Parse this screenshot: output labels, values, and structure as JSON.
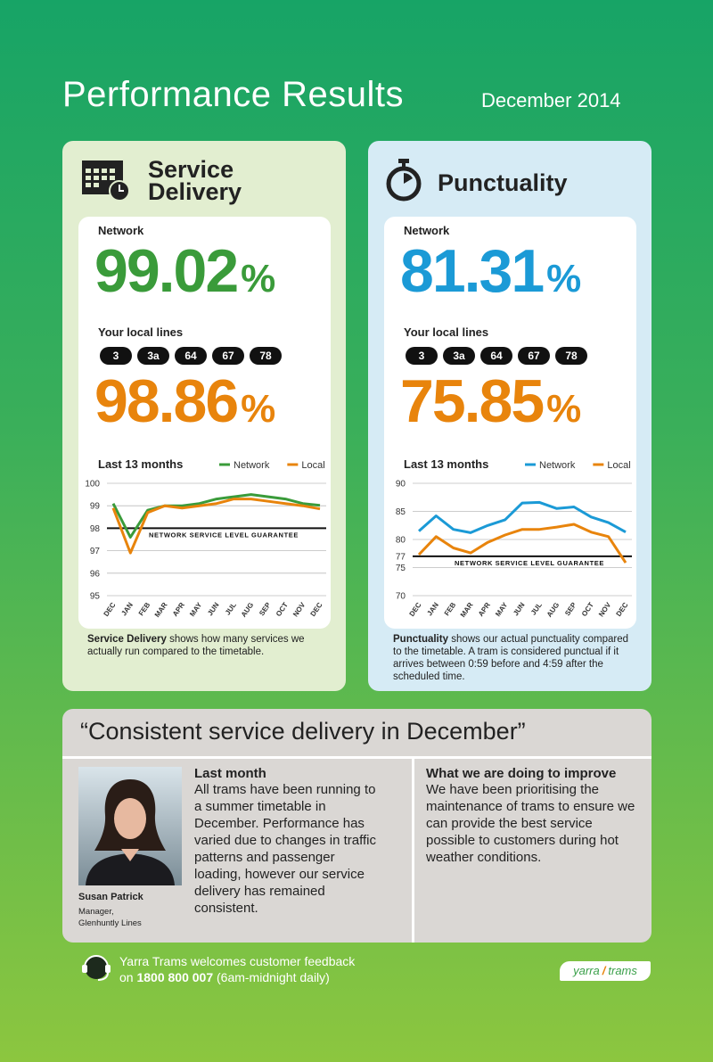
{
  "header": {
    "title": "Performance Results",
    "date": "December 2014"
  },
  "panels": [
    {
      "title": "Service Delivery",
      "network_label": "Network",
      "network_value": 99.02,
      "unit": "%",
      "local_label": "Your local lines",
      "routes": [
        "3",
        "3a",
        "64",
        "67",
        "78"
      ],
      "local_value": 98.86,
      "caption_bold": "Service Delivery",
      "caption": "shows how many services we actually run compared to the timetable."
    },
    {
      "title": "Punctuality",
      "network_label": "Network",
      "network_value": 81.31,
      "unit": "%",
      "local_label": "Your local lines",
      "routes": [
        "3",
        "3a",
        "64",
        "67",
        "78"
      ],
      "local_value": 75.85,
      "caption_bold": "Punctuality",
      "caption": "shows our actual punctuality compared to the timetable. A tram is considered punctual if it arrives between 0:59 before and 4:59 after the scheduled time."
    }
  ],
  "chart_data": [
    {
      "type": "line",
      "title": "Last 13 months",
      "categories": [
        "DEC",
        "JAN",
        "FEB",
        "MAR",
        "APR",
        "MAY",
        "JUN",
        "JUL",
        "AUG",
        "SEP",
        "OCT",
        "NOV",
        "DEC"
      ],
      "series": [
        {
          "name": "Network",
          "color": "#3a9b3a",
          "values": [
            99.1,
            97.6,
            98.8,
            99.0,
            99.0,
            99.1,
            99.3,
            99.4,
            99.5,
            99.4,
            99.3,
            99.1,
            99.02
          ]
        },
        {
          "name": "Local",
          "color": "#e8840c",
          "values": [
            98.9,
            96.9,
            98.7,
            99.0,
            98.9,
            99.0,
            99.1,
            99.3,
            99.3,
            99.2,
            99.1,
            99.0,
            98.86
          ]
        }
      ],
      "ylim": [
        95,
        100
      ],
      "yticks": [
        95,
        96,
        97,
        98,
        99,
        100
      ],
      "grid": true,
      "reference_line": {
        "value": 98,
        "label": "NETWORK SERVICE LEVEL GUARANTEE"
      }
    },
    {
      "type": "line",
      "title": "Last 13 months",
      "categories": [
        "DEC",
        "JAN",
        "FEB",
        "MAR",
        "APR",
        "MAY",
        "JUN",
        "JUL",
        "AUG",
        "SEP",
        "OCT",
        "NOV",
        "DEC"
      ],
      "series": [
        {
          "name": "Network",
          "color": "#1b9ad6",
          "values": [
            81.5,
            84.2,
            81.8,
            81.2,
            82.5,
            83.5,
            86.5,
            86.6,
            85.5,
            85.8,
            84.0,
            83.0,
            81.31
          ]
        },
        {
          "name": "Local",
          "color": "#e8840c",
          "values": [
            77.3,
            80.5,
            78.5,
            77.6,
            79.5,
            80.8,
            81.8,
            81.8,
            82.2,
            82.7,
            81.3,
            80.5,
            75.85
          ]
        }
      ],
      "ylim": [
        70,
        90
      ],
      "yticks": [
        70,
        75,
        77,
        80,
        85,
        90
      ],
      "grid": true,
      "reference_line": {
        "value": 77,
        "label": "NETWORK SERVICE LEVEL GUARANTEE"
      }
    }
  ],
  "summary": {
    "quote": "“Consistent service delivery in December”",
    "person": {
      "name": "Susan Patrick",
      "role": [
        "Manager,",
        "Glenhuntly Lines"
      ]
    },
    "last_month": {
      "heading": "Last month",
      "body": "All trams have been running to a summer timetable in December. Performance has varied due to changes in traffic patterns and passenger loading, however our service delivery has remained consistent."
    },
    "improve": {
      "heading": "What we are doing to improve",
      "body": "We have been prioritising the maintenance of trams to ensure we can provide the best service possible to customers during hot weather conditions."
    }
  },
  "footer": {
    "line1": "Yarra Trams welcomes customer feedback",
    "prefix": "on",
    "phone": "1800 800 007",
    "hours": "(6am-midnight daily)",
    "logo": [
      "yarra",
      "trams"
    ]
  }
}
